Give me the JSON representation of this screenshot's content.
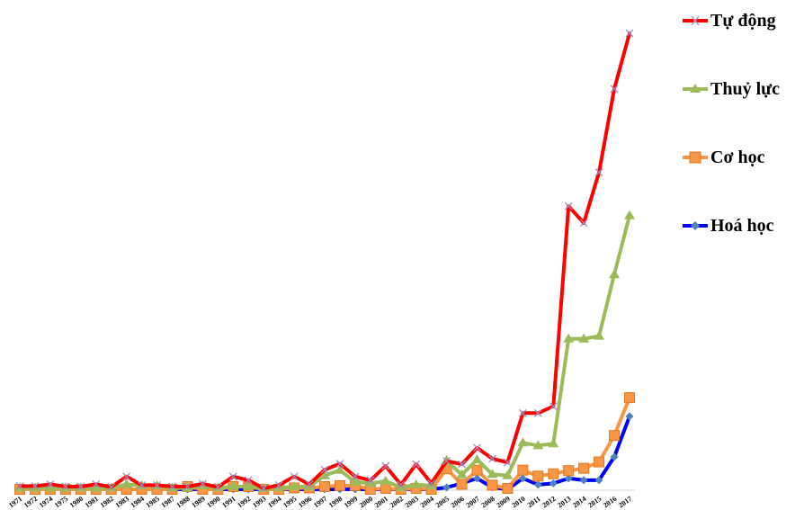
{
  "chart_data": {
    "type": "line",
    "title": "",
    "xlabel": "",
    "ylabel": "",
    "categories": [
      "1971",
      "1972",
      "1974",
      "1975",
      "1980",
      "1981",
      "1982",
      "1983",
      "1984",
      "1985",
      "1987",
      "1988",
      "1989",
      "1990",
      "1991",
      "1992",
      "1993",
      "1994",
      "1995",
      "1996",
      "1997",
      "1998",
      "1999",
      "2000",
      "2001",
      "2002",
      "2003",
      "2004",
      "2005",
      "2006",
      "2007",
      "2008",
      "2009",
      "2010",
      "2011",
      "2012",
      "2013",
      "2014",
      "2015",
      "2016",
      "2017"
    ],
    "ylim": [
      0,
      100
    ],
    "grid": false,
    "legend_position": "right",
    "series": [
      {
        "name": "Tự động",
        "color": "#ff0000",
        "marker": "cross",
        "values": [
          0.7,
          0.7,
          1.1,
          0.6,
          0.6,
          1.1,
          0.5,
          2.8,
          0.9,
          0.9,
          0.6,
          0.6,
          1.2,
          0.5,
          2.8,
          2.0,
          0.2,
          0.9,
          2.8,
          1.1,
          4.3,
          5.6,
          2.8,
          2.0,
          5.1,
          1.0,
          5.5,
          1.3,
          6.2,
          5.5,
          9.1,
          6.7,
          5.9,
          16.7,
          16.7,
          18.2,
          62.1,
          58.4,
          69.5,
          87.8,
          100
        ]
      },
      {
        "name": "Thuỷ lực",
        "color": "#9bbb59",
        "marker": "triangle",
        "values": [
          0.3,
          0.3,
          0.3,
          0.3,
          0.3,
          0.3,
          0.3,
          1.1,
          0.8,
          0.8,
          0.3,
          0.3,
          0.8,
          0.3,
          0.6,
          0.6,
          0.2,
          0.3,
          0.6,
          0.6,
          3.0,
          4.2,
          1.6,
          1.3,
          1.8,
          0.4,
          1.0,
          0.8,
          6.3,
          3.2,
          6.5,
          3.3,
          3.0,
          10.2,
          9.6,
          10.0,
          33.0,
          33.0,
          33.6,
          47.1,
          60.0
        ]
      },
      {
        "name": "Cơ học",
        "color": "#f79646",
        "marker": "square",
        "values": [
          0,
          0,
          0,
          0,
          0,
          0,
          0,
          0,
          0,
          0,
          0,
          0.6,
          0,
          0,
          0.6,
          0.6,
          0,
          0,
          0.3,
          0.3,
          0.6,
          0.8,
          0.8,
          0,
          0.2,
          0,
          0.2,
          0,
          4.5,
          1.1,
          4.2,
          0.9,
          0.2,
          4.2,
          2.9,
          3.4,
          4.1,
          4.6,
          6.0,
          11.8,
          20.1
        ]
      },
      {
        "name": "Hoá học",
        "color": "#0000ff",
        "marker": "diamond",
        "values": [
          0,
          0,
          0,
          0,
          0,
          0,
          0,
          0,
          0,
          0,
          0,
          0,
          0,
          0,
          0,
          0,
          0,
          0,
          0,
          0,
          0,
          0,
          0,
          0,
          0,
          0,
          0,
          0,
          0.4,
          1.3,
          2.4,
          0.4,
          0,
          2.4,
          1.0,
          1.3,
          2.4,
          2.0,
          2.0,
          7.1,
          16.0
        ]
      }
    ],
    "legend_order": [
      "Tự động",
      "Thuỷ lực",
      "Cơ học",
      "Hoá học"
    ]
  }
}
